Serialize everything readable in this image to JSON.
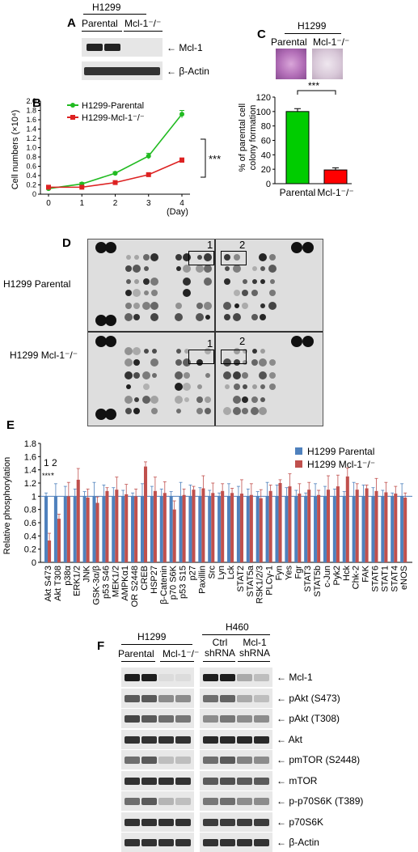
{
  "panels": {
    "A": "A",
    "B": "B",
    "C": "C",
    "D": "D",
    "E": "E",
    "F": "F"
  },
  "panelA": {
    "cell_line": "H1299",
    "groups": [
      "Parental",
      "Mcl-1⁻/⁻"
    ],
    "bands": [
      "Mcl-1",
      "β-Actin"
    ]
  },
  "panelB": {
    "ylabel": "Cell numbers (×10⁴)",
    "xunit": "(Day)",
    "sig": "***",
    "legend": [
      "H1299-Parental",
      "H1299-Mcl-1⁻/⁻"
    ]
  },
  "panelC": {
    "cell_line": "H1299",
    "groups": [
      "Parental",
      "Mcl-1⁻/⁻"
    ],
    "ylabel1": "% of parental cell",
    "ylabel2": "colony formation",
    "sig": "***"
  },
  "panelD": {
    "rows": [
      "H1299 Parental",
      "H1299 Mcl-1⁻/⁻"
    ],
    "box_labels": [
      "1",
      "2"
    ]
  },
  "panelE": {
    "ylabel": "Relative phosphorylation",
    "legend": [
      "H1299 Parental",
      "H1299 Mcl-1⁻/⁻"
    ],
    "marks": [
      "1",
      "2",
      "***",
      "*"
    ]
  },
  "panelF": {
    "cell_line_left": "H1299",
    "cell_line_right": "H460",
    "groups_left": [
      "Parental",
      "Mcl-1⁻/⁻"
    ],
    "groups_right": [
      "Ctrl shRNA",
      "Mcl-1 shRNA"
    ],
    "bands": [
      "Mcl-1",
      "pAkt (S473)",
      "pAkt (T308)",
      "Akt",
      "pmTOR (S2448)",
      "mTOR",
      "p-p70S6K (T389)",
      "p70S6K",
      "β-Actin"
    ]
  },
  "chart_data": [
    {
      "type": "line",
      "x": [
        0,
        1,
        2,
        3,
        4
      ],
      "xticks": [
        "0",
        "1",
        "2",
        "3",
        "4"
      ],
      "ylabel": "Cell numbers (×10⁴)",
      "xlabel": "(Day)",
      "ylim": [
        0,
        2.0
      ],
      "yticks": [
        "0",
        "0.2",
        "0.4",
        "0.6",
        "0.8",
        "1.0",
        "1.2",
        "1.4",
        "1.6",
        "1.8",
        "2.0"
      ],
      "series": [
        {
          "name": "H1299-Parental",
          "color": "#22bb22",
          "values": [
            0.12,
            0.22,
            0.45,
            0.82,
            1.72
          ],
          "err": [
            0.03,
            0.03,
            0.03,
            0.06,
            0.08
          ]
        },
        {
          "name": "H1299-Mcl-1⁻/⁻",
          "color": "#dd2222",
          "values": [
            0.15,
            0.15,
            0.25,
            0.42,
            0.73
          ],
          "err": [
            0.04,
            0.03,
            0.03,
            0.03,
            0.05
          ]
        }
      ]
    },
    {
      "type": "bar",
      "categories": [
        "Parental",
        "Mcl-1⁻/⁻"
      ],
      "values": [
        100,
        19
      ],
      "err": [
        4,
        3
      ],
      "colors": [
        "#00cc00",
        "#ff0000"
      ],
      "ylim": [
        0,
        120
      ],
      "yticks": [
        "0",
        "20",
        "40",
        "60",
        "80",
        "100",
        "120"
      ]
    },
    {
      "type": "bar",
      "ylabel": "Relative phosphorylation",
      "ylim": [
        0,
        1.8
      ],
      "yticks": [
        "0",
        "0.2",
        "0.4",
        "0.6",
        "0.8",
        "1",
        "1.2",
        "1.4",
        "1.6",
        "1.8"
      ],
      "categories": [
        "Akt S473",
        "Akt T308",
        "p38α",
        "ERK1/2",
        "JNK",
        "GSK-3α/β",
        "p53 S46",
        "MEK1/2",
        "AMPKα1",
        "mTOR S2448",
        "CREB",
        "HSP27",
        "β-Catenin",
        "p70 S6K",
        "p53 S15",
        "p27",
        "Paxillin",
        "Src",
        "Lyn",
        "Lck",
        "STAT2",
        "STAT5a",
        "RSK1/2/3",
        "PLCγ-1",
        "Fyn",
        "Yes",
        "Fgr",
        "STAT3",
        "STAT5b",
        "c-Jun",
        "Pyk2",
        "Hck",
        "Chk-2",
        "FAK",
        "STAT6",
        "STAT1",
        "STAT4",
        "eNOS"
      ],
      "series": [
        {
          "name": "H1299 Parental",
          "color": "#4f81bd",
          "values": [
            1,
            1,
            1,
            1,
            1,
            1,
            1,
            1,
            1,
            1,
            1,
            1,
            1,
            1,
            1,
            1,
            1,
            1,
            1,
            1,
            1,
            1,
            1,
            1,
            1,
            1,
            1,
            1,
            1,
            1,
            1,
            1,
            1,
            1,
            1,
            1,
            1,
            1
          ]
        },
        {
          "name": "H1299 Mcl-1⁻/⁻",
          "color": "#c0504d",
          "values": [
            0.33,
            0.66,
            1.0,
            1.25,
            0.98,
            0.9,
            1.08,
            1.1,
            1.03,
            1.0,
            1.45,
            1.08,
            1.05,
            0.8,
            1.02,
            1.1,
            1.12,
            1.05,
            1.08,
            1.05,
            1.04,
            1.02,
            0.97,
            1.08,
            1.2,
            1.15,
            1.04,
            1.1,
            1.02,
            1.1,
            1.15,
            1.3,
            1.1,
            1.12,
            1.08,
            1.06,
            1.04,
            0.98
          ]
        }
      ]
    }
  ]
}
